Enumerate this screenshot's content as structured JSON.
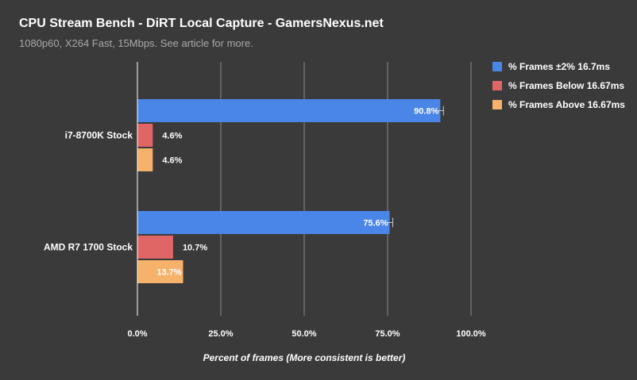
{
  "chart_data": {
    "type": "bar",
    "orientation": "horizontal",
    "title": "CPU Stream Bench - DiRT Local Capture - GamersNexus.net",
    "subtitle": "1080p60, X264 Fast, 15Mbps. See article for more.",
    "xlabel": "Percent of frames (More consistent is better)",
    "ylabel": "",
    "xlim": [
      0,
      100
    ],
    "x_ticks": [
      0,
      25,
      50,
      75,
      100
    ],
    "x_tick_labels": [
      "0.0%",
      "25.0%",
      "50.0%",
      "75.0%",
      "100.0%"
    ],
    "categories": [
      "i7-8700K Stock",
      "AMD R7 1700 Stock"
    ],
    "series": [
      {
        "name": "% Frames ±2% 16.7ms",
        "color": "#4a86e8",
        "values": [
          90.8,
          75.6
        ],
        "labels": [
          "90.8%",
          "75.6%"
        ],
        "error_bars": true
      },
      {
        "name": "% Frames Below 16.67ms",
        "color": "#e06666",
        "values": [
          4.6,
          10.7
        ],
        "labels": [
          "4.6%",
          "10.7%"
        ],
        "error_bars": false
      },
      {
        "name": "% Frames Above 16.67ms",
        "color": "#f6b26b",
        "values": [
          4.6,
          13.7
        ],
        "labels": [
          "4.6%",
          "13.7%"
        ],
        "error_bars": false
      }
    ],
    "legend_position": "top-right",
    "grid": true,
    "colors": {
      "background": "#3a3a3a",
      "grid": "#8a8a8a",
      "axis": "#ffffff",
      "error_bar": "#c8c8c8"
    }
  }
}
